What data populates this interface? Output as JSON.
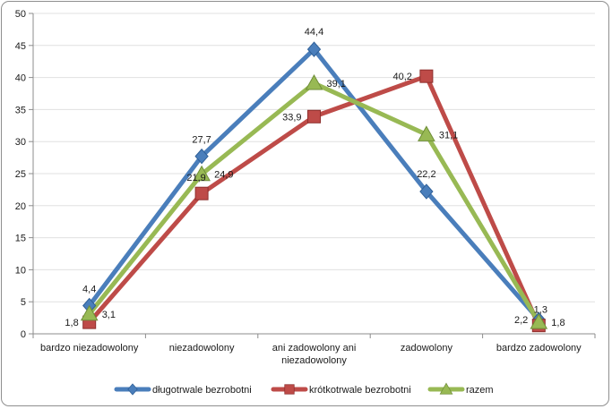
{
  "chart_data": {
    "type": "line",
    "title": "",
    "xlabel": "",
    "ylabel": "",
    "ylim": [
      0,
      50
    ],
    "yticks": [
      0,
      5,
      10,
      15,
      20,
      25,
      30,
      35,
      40,
      45,
      50
    ],
    "grid": true,
    "legend_position": "bottom",
    "categories": [
      [
        "bardzo niezadowolony"
      ],
      [
        "niezadowolony"
      ],
      [
        "ani zadowolony ani",
        "niezadowolony"
      ],
      [
        "zadowolony"
      ],
      [
        "bardzo zadowolony"
      ]
    ],
    "series": [
      {
        "name": "długotrwale bezrobotni",
        "values": [
          4.4,
          27.7,
          44.4,
          22.2,
          2.2
        ],
        "labels": [
          "4,4",
          "27,7",
          "44,4",
          "22,2",
          "2,2"
        ],
        "color": "#4a7ebb",
        "marker": "diamond"
      },
      {
        "name": "krótkotrwale bezrobotni",
        "values": [
          1.8,
          21.9,
          33.9,
          40.2,
          1.3
        ],
        "labels": [
          "1,8",
          "21,9",
          "33,9",
          "40,2",
          "1,3"
        ],
        "color": "#be4b48",
        "marker": "square"
      },
      {
        "name": "razem",
        "values": [
          3.1,
          24.9,
          39.1,
          31.1,
          1.8
        ],
        "labels": [
          "3,1",
          "24,9",
          "39,1",
          "31,1",
          "1,8"
        ],
        "color": "#98b954",
        "marker": "triangle"
      }
    ]
  }
}
